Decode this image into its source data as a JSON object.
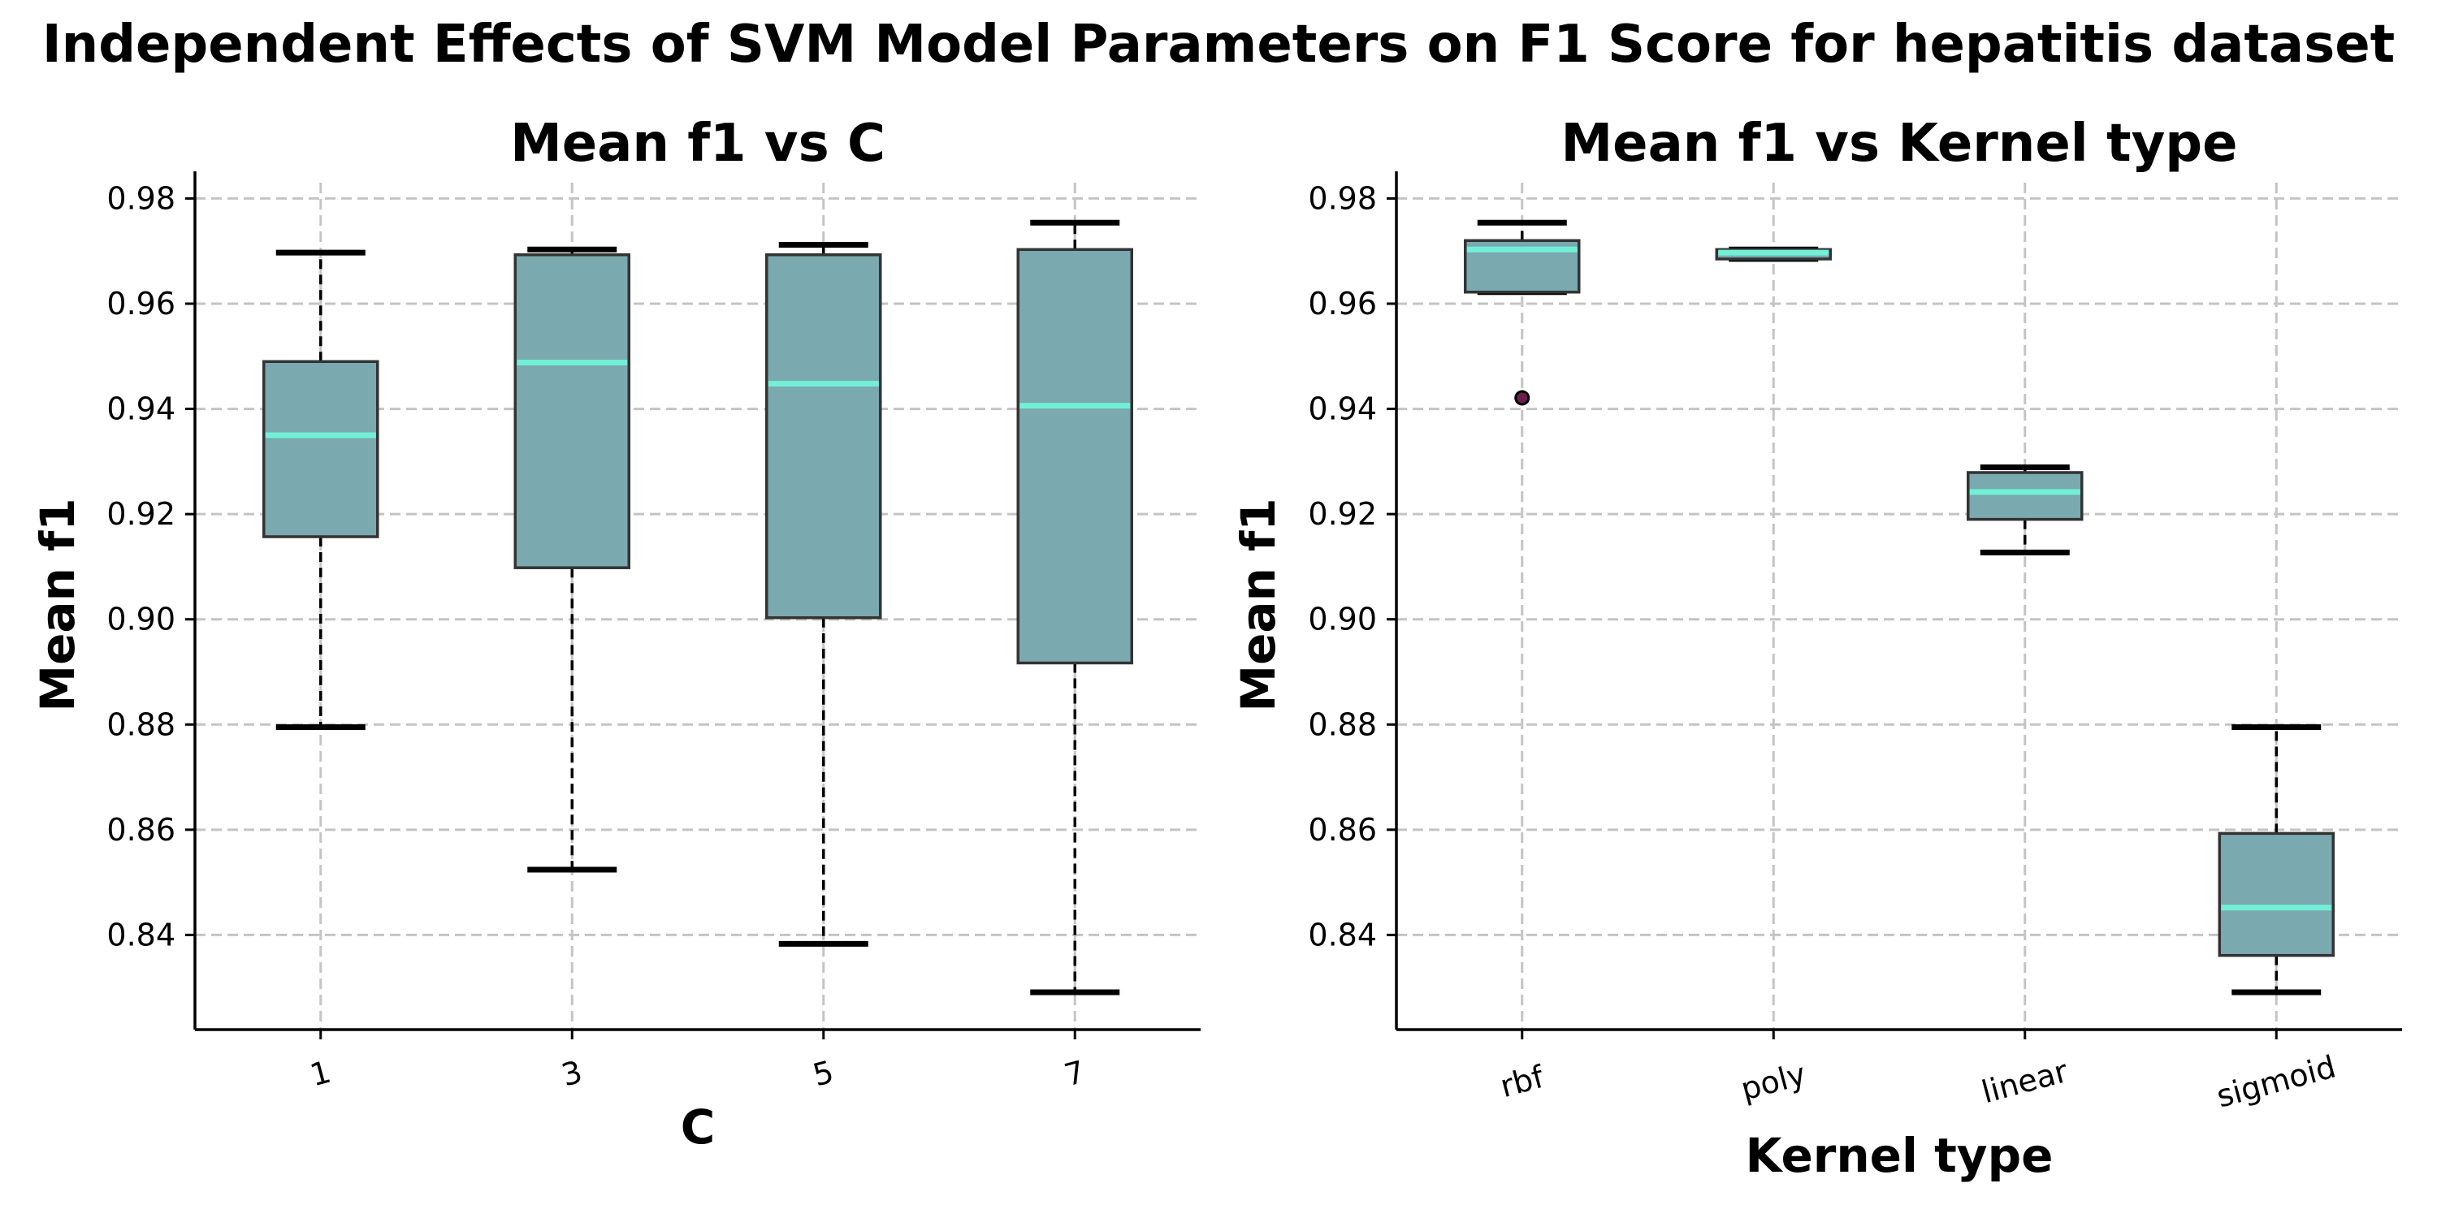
{
  "title": "Independent Effects of SVM Model Parameters on F1 Score for hepatitis dataset",
  "colors": {
    "box_fill": "#7aa9b0",
    "box_edge": "#333333",
    "median": "#72f0d6",
    "whisker": "#000000",
    "outlier_fill": "#6b1f4f",
    "grid": "#c4c4c4"
  },
  "chart_data": [
    {
      "type": "box",
      "title": "Mean f1 vs C",
      "xlabel": "C",
      "ylabel": "Mean f1",
      "ylim": [
        0.822,
        0.983
      ],
      "yticks": [
        0.84,
        0.86,
        0.88,
        0.9,
        0.92,
        0.94,
        0.96,
        0.98
      ],
      "ytick_labels": [
        "0.84",
        "0.86",
        "0.88",
        "0.90",
        "0.92",
        "0.94",
        "0.96",
        "0.98"
      ],
      "xtick_rotation": 15,
      "grid": true,
      "categories": [
        "1",
        "3",
        "5",
        "7"
      ],
      "boxes": [
        {
          "whislo": 0.8795,
          "q1": 0.9157,
          "median": 0.935,
          "q3": 0.949,
          "whishi": 0.9697,
          "fliers": []
        },
        {
          "whislo": 0.8524,
          "q1": 0.9098,
          "median": 0.9488,
          "q3": 0.9693,
          "whishi": 0.9703,
          "fliers": []
        },
        {
          "whislo": 0.8383,
          "q1": 0.9003,
          "median": 0.9448,
          "q3": 0.9693,
          "whishi": 0.9712,
          "fliers": []
        },
        {
          "whislo": 0.8291,
          "q1": 0.8917,
          "median": 0.9406,
          "q3": 0.9703,
          "whishi": 0.9754,
          "fliers": []
        }
      ]
    },
    {
      "type": "box",
      "title": "Mean f1 vs Kernel type",
      "xlabel": "Kernel type",
      "ylabel": "Mean f1",
      "ylim": [
        0.822,
        0.983
      ],
      "yticks": [
        0.84,
        0.86,
        0.88,
        0.9,
        0.92,
        0.94,
        0.96,
        0.98
      ],
      "ytick_labels": [
        "0.84",
        "0.86",
        "0.88",
        "0.90",
        "0.92",
        "0.94",
        "0.96",
        "0.98"
      ],
      "xtick_rotation": 15,
      "grid": true,
      "categories": [
        "rbf",
        "poly",
        "linear",
        "sigmoid"
      ],
      "boxes": [
        {
          "whislo": 0.9622,
          "q1": 0.9622,
          "median": 0.9703,
          "q3": 0.972,
          "whishi": 0.9754,
          "fliers": [
            0.9421
          ]
        },
        {
          "whislo": 0.9685,
          "q1": 0.9685,
          "median": 0.9697,
          "q3": 0.9703,
          "whishi": 0.9703,
          "fliers": []
        },
        {
          "whislo": 0.9127,
          "q1": 0.919,
          "median": 0.9242,
          "q3": 0.9279,
          "whishi": 0.9289,
          "fliers": []
        },
        {
          "whislo": 0.8291,
          "q1": 0.8361,
          "median": 0.8452,
          "q3": 0.8593,
          "whishi": 0.8795,
          "fliers": []
        }
      ]
    }
  ]
}
